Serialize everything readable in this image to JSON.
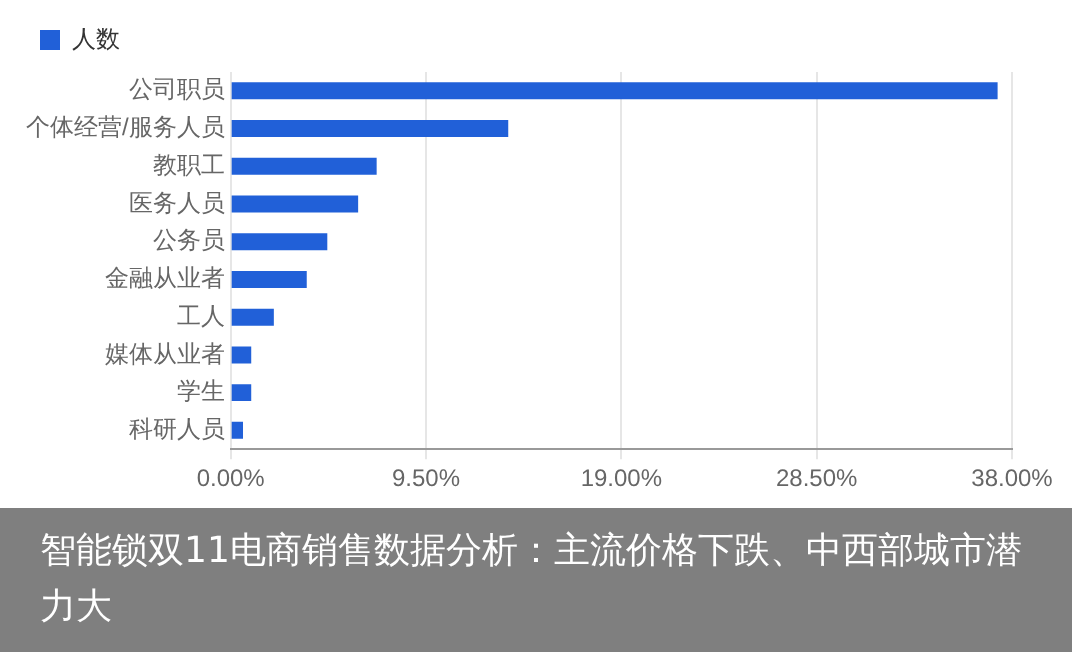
{
  "chart_data": {
    "type": "bar",
    "orientation": "horizontal",
    "title": "智能锁双11电商销售数据分析：主流价格下跌、中西部城市潜力大",
    "categories": [
      "公司职员",
      "个体经营/服务人员",
      "教职工",
      "医务人员",
      "公务员",
      "金融从业者",
      "工人",
      "媒体从业者",
      "学生",
      "科研人员"
    ],
    "series": [
      {
        "name": "人数",
        "color": "#2160d8",
        "values": [
          37.3,
          13.5,
          7.1,
          6.2,
          4.7,
          3.7,
          2.1,
          1.0,
          1.0,
          0.6
        ]
      }
    ],
    "xlim": [
      0,
      38
    ],
    "xticks": [
      {
        "value": 0,
        "label": "0.00%"
      },
      {
        "value": 9.5,
        "label": "9.50%"
      },
      {
        "value": 19,
        "label": "19.00%"
      },
      {
        "value": 28.5,
        "label": "28.50%"
      },
      {
        "value": 38,
        "label": "38.00%"
      }
    ],
    "grid": "x",
    "legend": "top left"
  }
}
